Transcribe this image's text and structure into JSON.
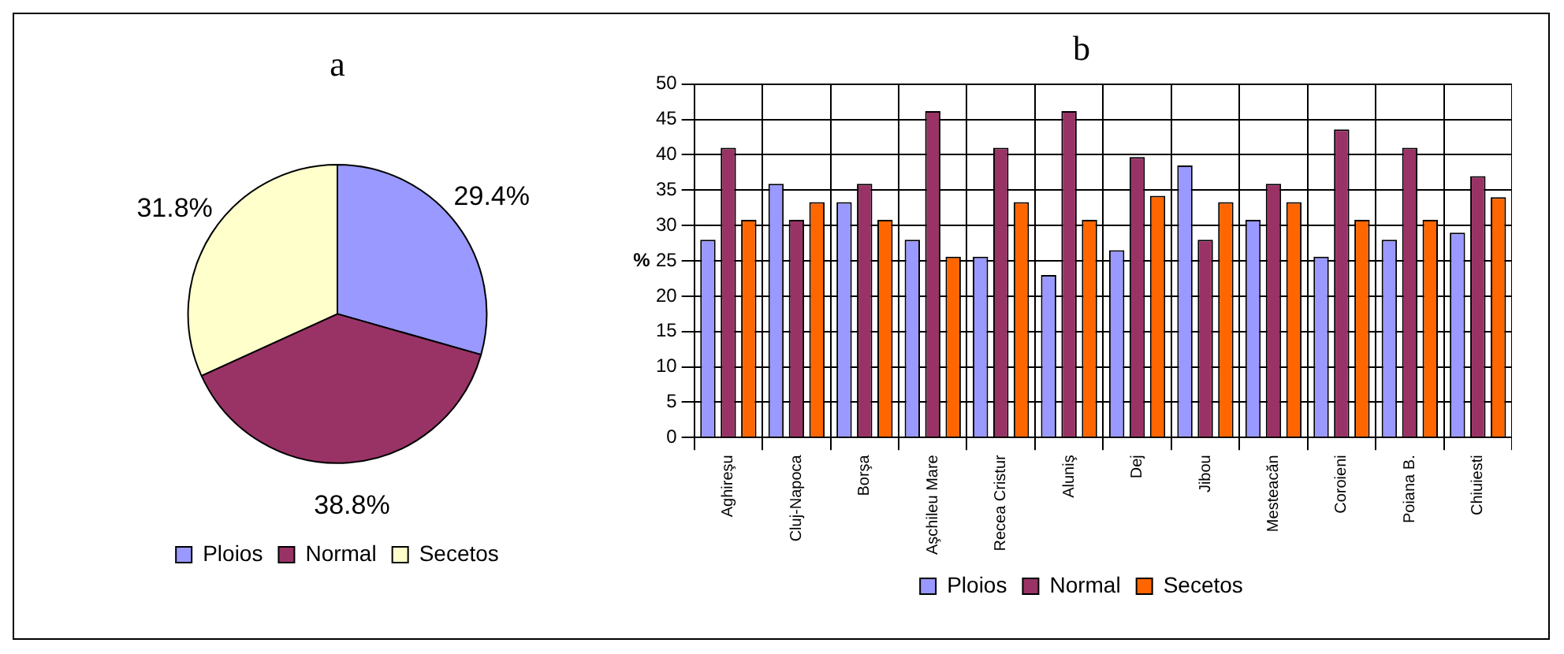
{
  "chart_data": [
    {
      "type": "pie",
      "title": "a",
      "categories": [
        "Ploios",
        "Normal",
        "Secetos"
      ],
      "values": [
        29.4,
        38.8,
        31.8
      ],
      "colors": [
        "#9999ff",
        "#993366",
        "#ffffcc"
      ],
      "value_labels": [
        "29.4%",
        "38.8%",
        "31.8%"
      ],
      "legend": "bottom"
    },
    {
      "type": "bar",
      "title": "b",
      "ylabel": "%",
      "categories": [
        "Aghireşu",
        "Cluj-Napoca",
        "Borşa",
        "Aşchileu Mare",
        "Recea Cristur",
        "Aluniş",
        "Dej",
        "Jibou",
        "Mesteacăn",
        "Coroieni",
        "Poiana B.",
        "Chiuiesti"
      ],
      "series": [
        {
          "name": "Ploios",
          "color": "#9999ff",
          "values": [
            28,
            35.9,
            33.3,
            28,
            25.6,
            23,
            26.5,
            38.5,
            30.8,
            25.6,
            28,
            29
          ]
        },
        {
          "name": "Normal",
          "color": "#993366",
          "values": [
            41,
            30.8,
            35.9,
            46.2,
            41,
            46.2,
            39.7,
            28,
            35.9,
            43.6,
            41,
            37
          ]
        },
        {
          "name": "Secetos",
          "color": "#ff6600",
          "values": [
            30.8,
            33.3,
            30.8,
            25.6,
            33.3,
            30.8,
            34.2,
            33.3,
            33.3,
            30.8,
            30.8,
            34
          ]
        }
      ],
      "ylim": [
        0,
        50
      ],
      "yticks": [
        0,
        5,
        10,
        15,
        20,
        25,
        30,
        35,
        40,
        45,
        50
      ],
      "grid": true,
      "legend": "bottom"
    }
  ]
}
